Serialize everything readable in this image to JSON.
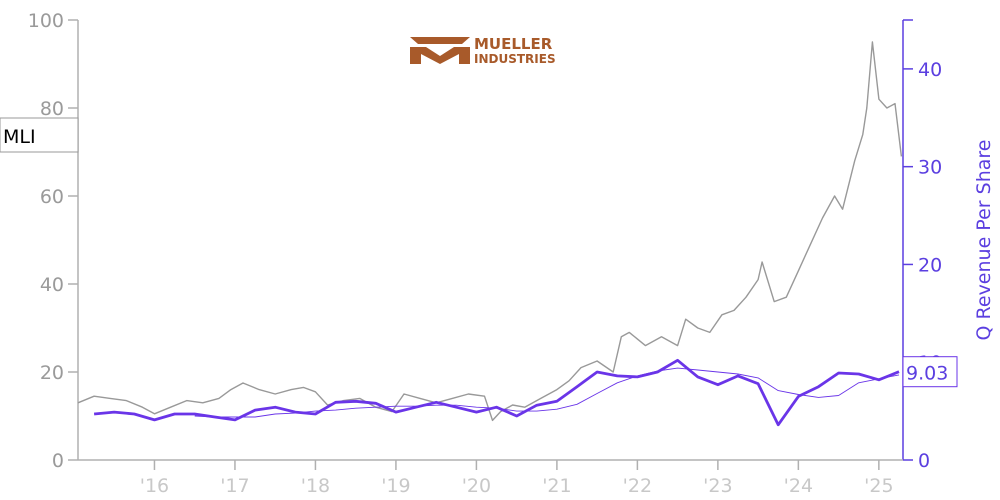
{
  "logo": {
    "line1": "MUELLER",
    "line2": "INDUSTRIES",
    "color": "#a85a2a"
  },
  "ticker_tag": "MLI",
  "last_value_tag": "9.03",
  "chart_data": {
    "type": "line",
    "x_tick_labels": [
      "'16",
      "'17",
      "'18",
      "'19",
      "'20",
      "'21",
      "'22",
      "'23",
      "'24",
      "'25"
    ],
    "x_tick_years": [
      2016,
      2017,
      2018,
      2019,
      2020,
      2021,
      2022,
      2023,
      2024,
      2025
    ],
    "xlim": [
      2015.05,
      2025.3
    ],
    "left_axis": {
      "label": "",
      "ylim": [
        0,
        100
      ],
      "ticks": [
        0,
        20,
        40,
        60,
        80,
        100
      ],
      "color": "#9a9a9a"
    },
    "right_axis": {
      "label": "Q Revenue Per Share",
      "ylim": [
        0,
        45
      ],
      "ticks": [
        0,
        10,
        20,
        30,
        40
      ],
      "color": "#5b3fe0"
    },
    "grid": false,
    "series": [
      {
        "name": "MLI",
        "axis": "left",
        "color": "#999999",
        "x": [
          2015.05,
          2015.25,
          2015.45,
          2015.65,
          2015.85,
          2016.0,
          2016.2,
          2016.4,
          2016.6,
          2016.8,
          2016.95,
          2017.1,
          2017.3,
          2017.5,
          2017.7,
          2017.85,
          2018.0,
          2018.15,
          2018.35,
          2018.55,
          2018.75,
          2018.95,
          2019.1,
          2019.3,
          2019.5,
          2019.7,
          2019.9,
          2020.1,
          2020.2,
          2020.3,
          2020.45,
          2020.6,
          2020.8,
          2021.0,
          2021.15,
          2021.3,
          2021.5,
          2021.7,
          2021.8,
          2021.9,
          2022.1,
          2022.3,
          2022.5,
          2022.6,
          2022.75,
          2022.9,
          2023.05,
          2023.2,
          2023.35,
          2023.5,
          2023.55,
          2023.7,
          2023.85,
          2024.0,
          2024.15,
          2024.3,
          2024.45,
          2024.55,
          2024.7,
          2024.8,
          2024.85,
          2024.92,
          2025.0,
          2025.1,
          2025.2,
          2025.28
        ],
        "y": [
          13.0,
          14.5,
          14.0,
          13.5,
          12.0,
          10.5,
          12.0,
          13.5,
          13.0,
          14.0,
          16.0,
          17.5,
          16.0,
          15.0,
          16.0,
          16.5,
          15.5,
          12.5,
          13.5,
          14.0,
          12.0,
          11.0,
          15.0,
          14.0,
          13.0,
          14.0,
          15.0,
          14.5,
          9.0,
          11.0,
          12.5,
          12.0,
          14.0,
          16.0,
          18.0,
          21.0,
          22.5,
          20.0,
          28.0,
          29.0,
          26.0,
          28.0,
          26.0,
          32.0,
          30.0,
          29.0,
          33.0,
          34.0,
          37.0,
          41.0,
          45.0,
          36.0,
          37.0,
          43.0,
          49.0,
          55.0,
          60.0,
          57.0,
          68.0,
          74.0,
          80.0,
          95.0,
          82.0,
          80.0,
          81.0,
          69.0
        ]
      },
      {
        "name": "",
        "axis": "right",
        "color": "#6a35e8",
        "x": [
          2015.25,
          2015.5,
          2015.75,
          2016.0,
          2016.25,
          2016.5,
          2016.75,
          2017.0,
          2017.25,
          2017.5,
          2017.75,
          2018.0,
          2018.25,
          2018.5,
          2018.75,
          2019.0,
          2019.25,
          2019.5,
          2019.75,
          2020.0,
          2020.25,
          2020.5,
          2020.75,
          2021.0,
          2021.25,
          2021.5,
          2021.75,
          2022.0,
          2022.25,
          2022.5,
          2022.75,
          2023.0,
          2023.25,
          2023.5,
          2023.75,
          2024.0,
          2024.25,
          2024.5,
          2024.75,
          2025.0,
          2025.25
        ],
        "y": [
          4.7,
          4.9,
          4.7,
          4.1,
          4.7,
          4.7,
          4.4,
          4.1,
          5.1,
          5.4,
          4.9,
          4.7,
          5.9,
          6.0,
          5.8,
          4.9,
          5.4,
          5.9,
          5.4,
          4.9,
          5.4,
          4.5,
          5.6,
          6.0,
          7.5,
          9.0,
          8.6,
          8.5,
          9.0,
          10.2,
          8.5,
          7.7,
          8.6,
          7.8,
          3.6,
          6.5,
          7.5,
          8.9,
          8.8,
          8.2,
          9.03
        ]
      },
      {
        "name": "",
        "axis": "right",
        "color": "#6a35e8",
        "x": [
          2016.5,
          2016.75,
          2017.0,
          2017.25,
          2017.5,
          2017.75,
          2018.0,
          2018.25,
          2018.5,
          2018.75,
          2019.0,
          2019.25,
          2019.5,
          2019.75,
          2020.0,
          2020.25,
          2020.5,
          2020.75,
          2021.0,
          2021.25,
          2021.5,
          2021.75,
          2022.0,
          2022.25,
          2022.5,
          2022.75,
          2023.0,
          2023.25,
          2023.5,
          2023.75,
          2024.0,
          2024.25,
          2024.5,
          2024.75,
          2025.0,
          2025.25
        ],
        "y": [
          4.5,
          4.4,
          4.4,
          4.4,
          4.7,
          4.8,
          5.0,
          5.1,
          5.3,
          5.4,
          5.5,
          5.5,
          5.6,
          5.6,
          5.4,
          5.3,
          5.0,
          5.0,
          5.2,
          5.7,
          6.8,
          7.9,
          8.6,
          9.1,
          9.4,
          9.2,
          9.0,
          8.8,
          8.4,
          7.1,
          6.7,
          6.4,
          6.6,
          7.9,
          8.3,
          8.7
        ]
      }
    ]
  }
}
